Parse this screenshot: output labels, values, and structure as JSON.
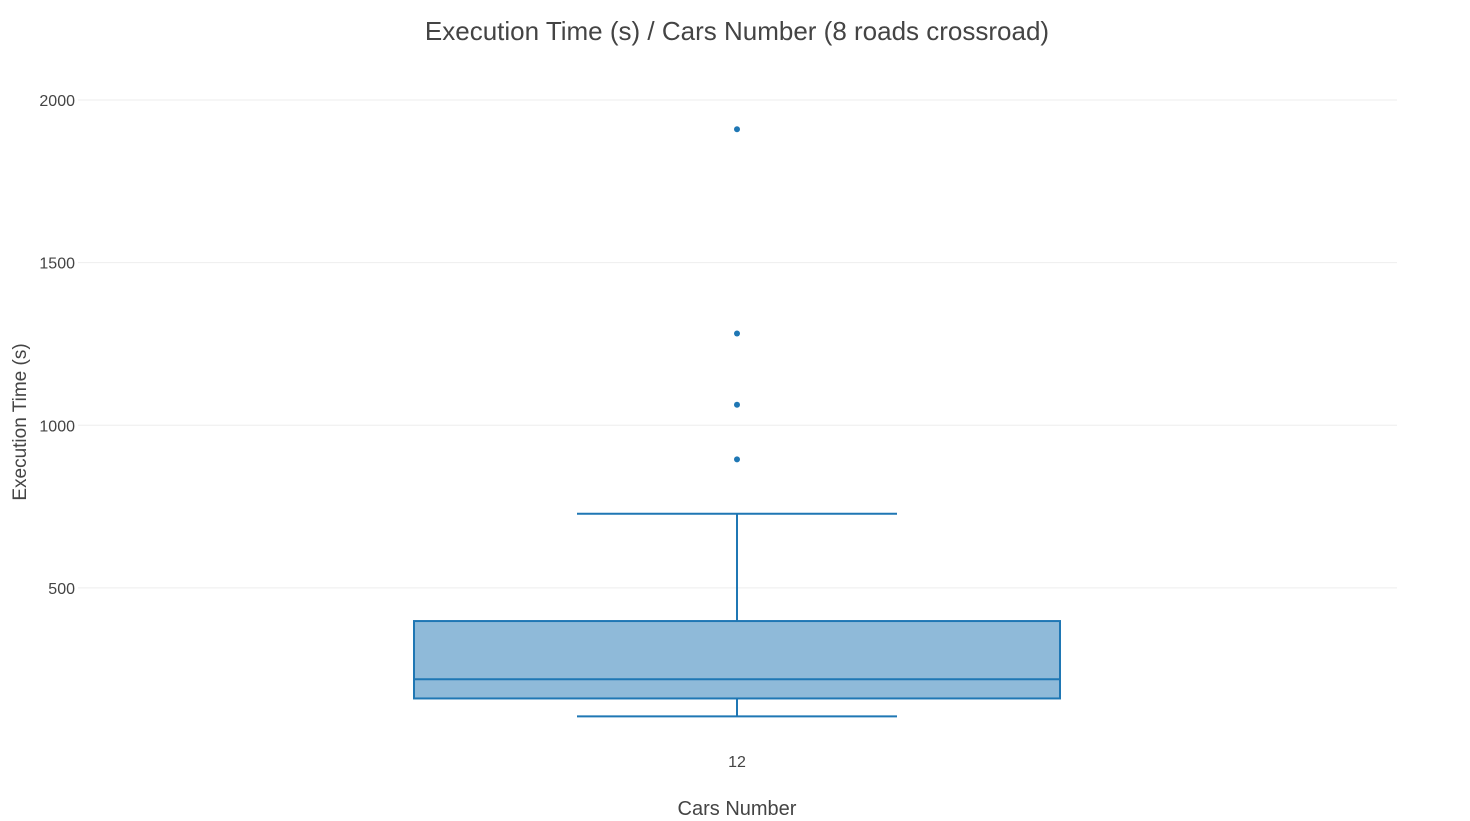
{
  "chart_data": {
    "type": "box",
    "title": "Execution Time (s) / Cars Number (8 roads crossroad)",
    "xlabel": "Cars Number",
    "ylabel": "Execution Time (s)",
    "categories": [
      "12"
    ],
    "ylim": [
      0,
      2050
    ],
    "y_ticks": [
      "500",
      "1000",
      "1500",
      "2000"
    ],
    "grid": true,
    "legend": "none",
    "series": [
      {
        "category": "12",
        "min": 105,
        "q1": 160,
        "median": 219,
        "q3": 398,
        "max": 728,
        "outliers": [
          895,
          1063,
          1282,
          1910
        ]
      }
    ],
    "colors": {
      "box_fill": "#8fbad9",
      "box_line": "#1f77b4",
      "grid": "#eeeeee",
      "text": "#444444"
    }
  }
}
